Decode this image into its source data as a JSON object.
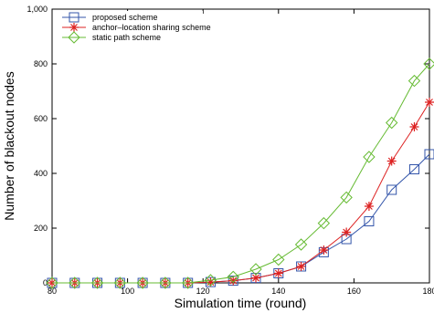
{
  "chart_data": {
    "type": "line",
    "title": "",
    "xlabel": "Simulation time (round)",
    "ylabel": "Number of blackout nodes",
    "xlim": [
      80,
      180
    ],
    "ylim": [
      0,
      1000
    ],
    "xticks": [
      80,
      100,
      120,
      140,
      160,
      180
    ],
    "yticks": [
      0,
      200,
      400,
      600,
      800,
      1000
    ],
    "ytick_labels": [
      "0",
      "200",
      "400",
      "600",
      "800",
      "1,000"
    ],
    "grid": false,
    "legend_position": "top-left",
    "series": [
      {
        "name": "proposed scheme",
        "color": "#3355aa",
        "marker": "square",
        "x": [
          80,
          86,
          92,
          98,
          104,
          110,
          116,
          122,
          128,
          134,
          140,
          146,
          152,
          158,
          164,
          170,
          176,
          180
        ],
        "y": [
          0,
          0,
          0,
          0,
          0,
          0,
          0,
          3,
          8,
          18,
          35,
          60,
          112,
          160,
          225,
          340,
          415,
          470
        ]
      },
      {
        "name": "anchor–location sharing scheme",
        "color": "#dd2222",
        "marker": "asterisk",
        "x": [
          80,
          86,
          92,
          98,
          104,
          110,
          116,
          122,
          128,
          134,
          140,
          146,
          152,
          158,
          164,
          170,
          176,
          180
        ],
        "y": [
          0,
          0,
          0,
          0,
          0,
          0,
          0,
          3,
          8,
          18,
          35,
          60,
          120,
          185,
          280,
          445,
          570,
          660
        ]
      },
      {
        "name": "static path scheme",
        "color": "#66bb33",
        "marker": "diamond",
        "x": [
          80,
          86,
          92,
          98,
          104,
          110,
          116,
          122,
          128,
          134,
          140,
          146,
          152,
          158,
          164,
          170,
          176,
          180
        ],
        "y": [
          0,
          0,
          0,
          0,
          0,
          0,
          0,
          10,
          22,
          50,
          85,
          140,
          218,
          312,
          460,
          585,
          738,
          800
        ]
      }
    ]
  }
}
